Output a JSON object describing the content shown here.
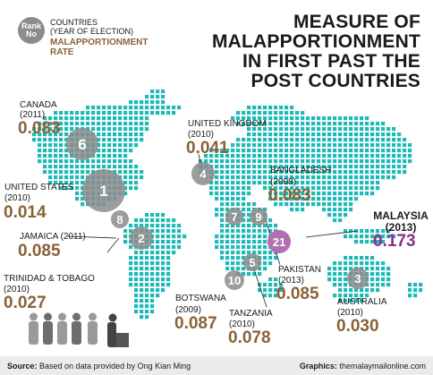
{
  "title": {
    "line1": "MEASURE OF",
    "line2": "MALAPPORTIONMENT",
    "line3": "IN FIRST PAST THE",
    "line4": "POST COUNTRIES"
  },
  "legend": {
    "rank_line1": "Rank",
    "rank_line2": "No",
    "countries_label": "COUNTRIES",
    "year_label": "(YEAR OF ELECTION)",
    "rate_label": "MALAPPORTIONMENT RATE"
  },
  "countries": {
    "canada": {
      "name": "CANADA",
      "year": "(2011)",
      "rate": "0.083",
      "rank": "6"
    },
    "uk": {
      "name": "UNITED KINGDOM",
      "year": "(2010)",
      "rate": "0.041",
      "rank": "4"
    },
    "usa": {
      "name": "UNITED STATES",
      "year": "(2010)",
      "rate": "0.014",
      "rank": "1"
    },
    "bangladesh": {
      "name": "BANGLADESH",
      "year": "(2008)",
      "rate": "0.083",
      "rank": "7"
    },
    "jamaica": {
      "name": "JAMAICA (2011)",
      "rate": "0.085",
      "rank": "8"
    },
    "trinidad": {
      "name": "TRINIDAD & TOBAGO",
      "year": "(2010)",
      "rate": "0.027",
      "rank": "2"
    },
    "malaysia": {
      "name": "MALAYSIA",
      "year": "(2013)",
      "rate": "0.173",
      "rank": "21"
    },
    "pakistan": {
      "name": "PAKISTAN",
      "year": "(2013)",
      "rate": "0.085",
      "rank": "9"
    },
    "botswana": {
      "name": "BOTSWANA",
      "year": "(2009)",
      "rate": "0.087",
      "rank": "10"
    },
    "tanzania": {
      "name": "TANZANIA",
      "year": "(2010)",
      "rate": "0.078",
      "rank": "5"
    },
    "australia": {
      "name": "AUSTRALIA",
      "year": "(2010)",
      "rate": "0.030",
      "rank": "3"
    }
  },
  "footer": {
    "source_label": "Source:",
    "source_text": "Based on data provided by Ong Kian Ming",
    "graphics_label": "Graphics:",
    "graphics_text": "themalaymailonline.com"
  },
  "colors": {
    "dots": "#1fbab5",
    "circles": "#8c8c8c",
    "rate_brown": "#8a6238",
    "malaysia_purple": "#8b2d8f"
  }
}
